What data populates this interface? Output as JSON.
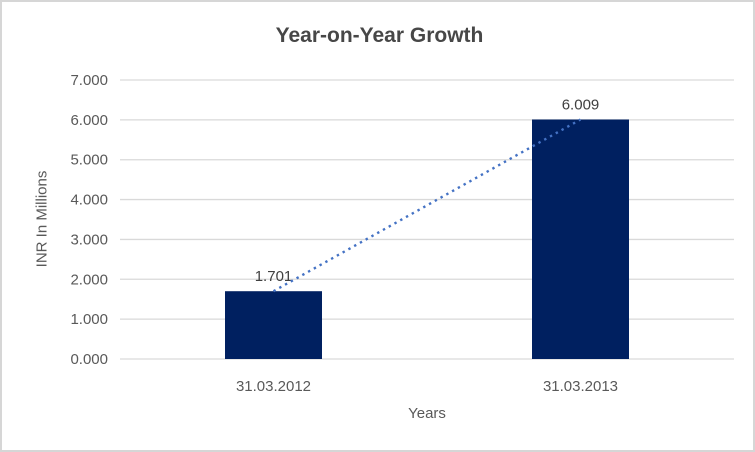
{
  "chart_data": {
    "type": "bar",
    "title": "Year-on-Year Growth",
    "categories": [
      "31.03.2012",
      "31.03.2013"
    ],
    "values": [
      1.701,
      6.009
    ],
    "value_labels": [
      "1.701",
      "6.009"
    ],
    "xlabel": "Years",
    "ylabel": "INR In Millions",
    "ylim": [
      0,
      7
    ],
    "ytick_step": 1,
    "ytick_labels": [
      "0.000",
      "1.000",
      "2.000",
      "3.000",
      "4.000",
      "5.000",
      "6.000",
      "7.000"
    ],
    "grid": true,
    "legend_position": "none",
    "trendline": {
      "type": "linear",
      "style": "dotted",
      "from_value": 1.701,
      "to_value": 6.009
    },
    "colors": {
      "bar": "#002060",
      "trendline": "#4472c4",
      "gridline": "#d9d9d9",
      "axis_line": "#d9d9d9",
      "axis_text": "#595959",
      "data_label": "#404040",
      "title_text": "#474747",
      "background": "#ffffff",
      "border": "#d6d6d6"
    }
  }
}
